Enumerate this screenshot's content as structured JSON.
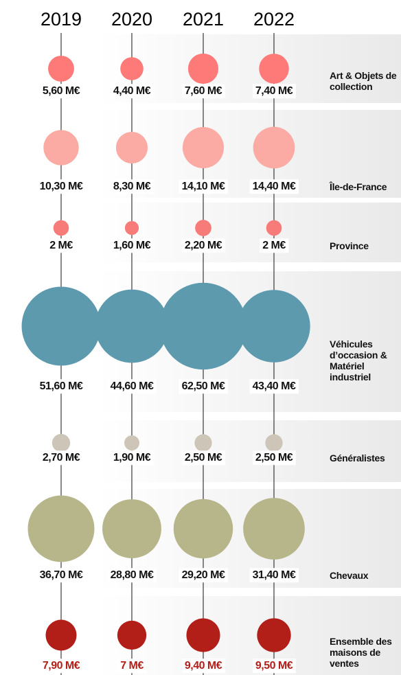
{
  "chart_data": {
    "type": "bubble",
    "categories": [
      "2019",
      "2020",
      "2021",
      "2022"
    ],
    "series": [
      {
        "name": "Art & Objets de collection",
        "color": "#fd7a78",
        "values": [
          5.6,
          4.4,
          7.6,
          7.4
        ],
        "value_labels": [
          "5,60 M€",
          "4,40 M€",
          "7,60 M€",
          "7,40 M€"
        ]
      },
      {
        "name": "Île-de-France",
        "color": "#fbaba3",
        "values": [
          10.3,
          8.3,
          14.1,
          14.4
        ],
        "value_labels": [
          "10,30 M€",
          "8,30 M€",
          "14,10 M€",
          "14,40 M€"
        ]
      },
      {
        "name": "Province",
        "color": "#f77b78",
        "values": [
          2,
          1.6,
          2.2,
          2
        ],
        "value_labels": [
          "2 M€",
          "1,60 M€",
          "2,20 M€",
          "2 M€"
        ]
      },
      {
        "name": "Véhicules d’occasion & Matériel industriel",
        "color": "#5e9aae",
        "values": [
          51.6,
          44.6,
          62.5,
          43.4
        ],
        "value_labels": [
          "51,60 M€",
          "44,60 M€",
          "62,50 M€",
          "43,40 M€"
        ]
      },
      {
        "name": "Généralistes",
        "color": "#cdc6b8",
        "values": [
          2.7,
          1.9,
          2.5,
          2.5
        ],
        "value_labels": [
          "2,70 M€",
          "1,90 M€",
          "2,50 M€",
          "2,50 M€"
        ]
      },
      {
        "name": "Chevaux",
        "color": "#b7b58a",
        "values": [
          36.7,
          28.8,
          29.2,
          31.4
        ],
        "value_labels": [
          "36,70 M€",
          "28,80 M€",
          "29,20 M€",
          "31,40 M€"
        ]
      },
      {
        "name": "Ensemble des maisons de ventes",
        "color": "#b11f18",
        "label_color": "#b11f18",
        "values": [
          7.9,
          7,
          9.4,
          9.5
        ],
        "value_labels": [
          "7,90 M€",
          "7 M€",
          "9,40 M€",
          "9,50 M€"
        ]
      }
    ]
  }
}
